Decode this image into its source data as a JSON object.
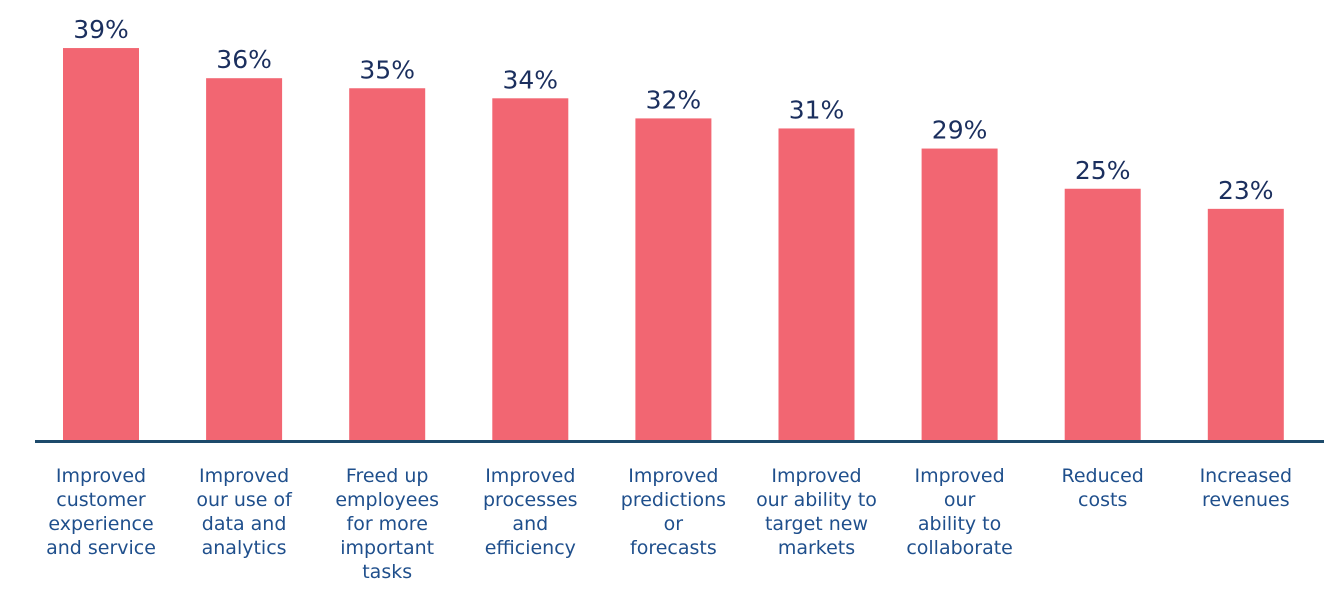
{
  "chart_data": {
    "type": "bar",
    "categories": [
      "Improved\ncustomer\nexperience\nand service",
      "Improved\nour use of\ndata and\nanalytics",
      "Freed up\nemployees\nfor more\nimportant\ntasks",
      "Improved\nprocesses\nand\nefficiency",
      "Improved\npredictions\nor\nforecasts",
      "Improved\nour ability to\ntarget new\nmarkets",
      "Improved\nour\nability to\ncollaborate",
      "Reduced\ncosts",
      "Increased\nrevenues"
    ],
    "values": [
      39,
      36,
      35,
      34,
      32,
      31,
      29,
      25,
      23
    ],
    "value_labels": [
      "39%",
      "36%",
      "35%",
      "34%",
      "32%",
      "31%",
      "29%",
      "25%",
      "23%"
    ],
    "color": "#f26672",
    "ylim": [
      0,
      40
    ]
  }
}
